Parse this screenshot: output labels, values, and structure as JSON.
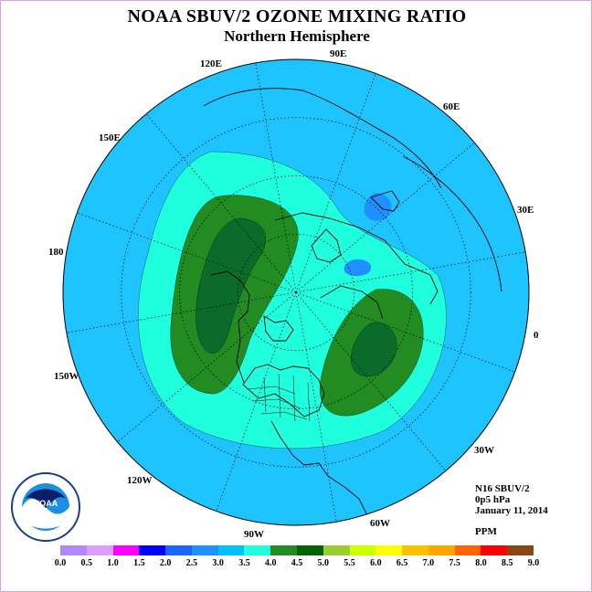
{
  "title": "NOAA SBUV/2 OZONE MIXING RATIO",
  "subtitle": "Northern Hemisphere",
  "longitude_labels": {
    "e90": "90E",
    "e120": "120E",
    "e60": "60E",
    "e150": "150E",
    "e30": "30E",
    "d180": "180",
    "d0": "0",
    "w150": "150W",
    "w30": "30W",
    "w120": "120W",
    "w60": "60W",
    "w90": "90W"
  },
  "info": {
    "instrument": "N16 SBUV/2",
    "pressure": "0p5 hPa",
    "date": "January 11, 2014",
    "units": "PPM"
  },
  "logo": {
    "text": "NOAA"
  },
  "colorbar": {
    "colors": [
      "#b388ff",
      "#dd9eff",
      "#ff00ff",
      "#0000ff",
      "#1a66ff",
      "#1e90ff",
      "#00bfff",
      "#20ffdd",
      "#228b22",
      "#006400",
      "#9acd32",
      "#ccff00",
      "#ffff00",
      "#ffc000",
      "#ffa500",
      "#ff6400",
      "#ff0000",
      "#8b4513"
    ],
    "ticks": [
      "0.0",
      "0.5",
      "1.0",
      "1.5",
      "2.0",
      "2.5",
      "3.0",
      "3.5",
      "4.0",
      "4.5",
      "5.0",
      "5.5",
      "6.0",
      "6.5",
      "7.0",
      "7.5",
      "8.0",
      "8.5",
      "9.0"
    ]
  },
  "field_colors": {
    "background": "#1ec4ff",
    "level_3_5": "#20ffdd",
    "level_4_0": "#228b22",
    "level_4_5": "#0a6b2a",
    "low_2_5": "#1e90ff"
  }
}
